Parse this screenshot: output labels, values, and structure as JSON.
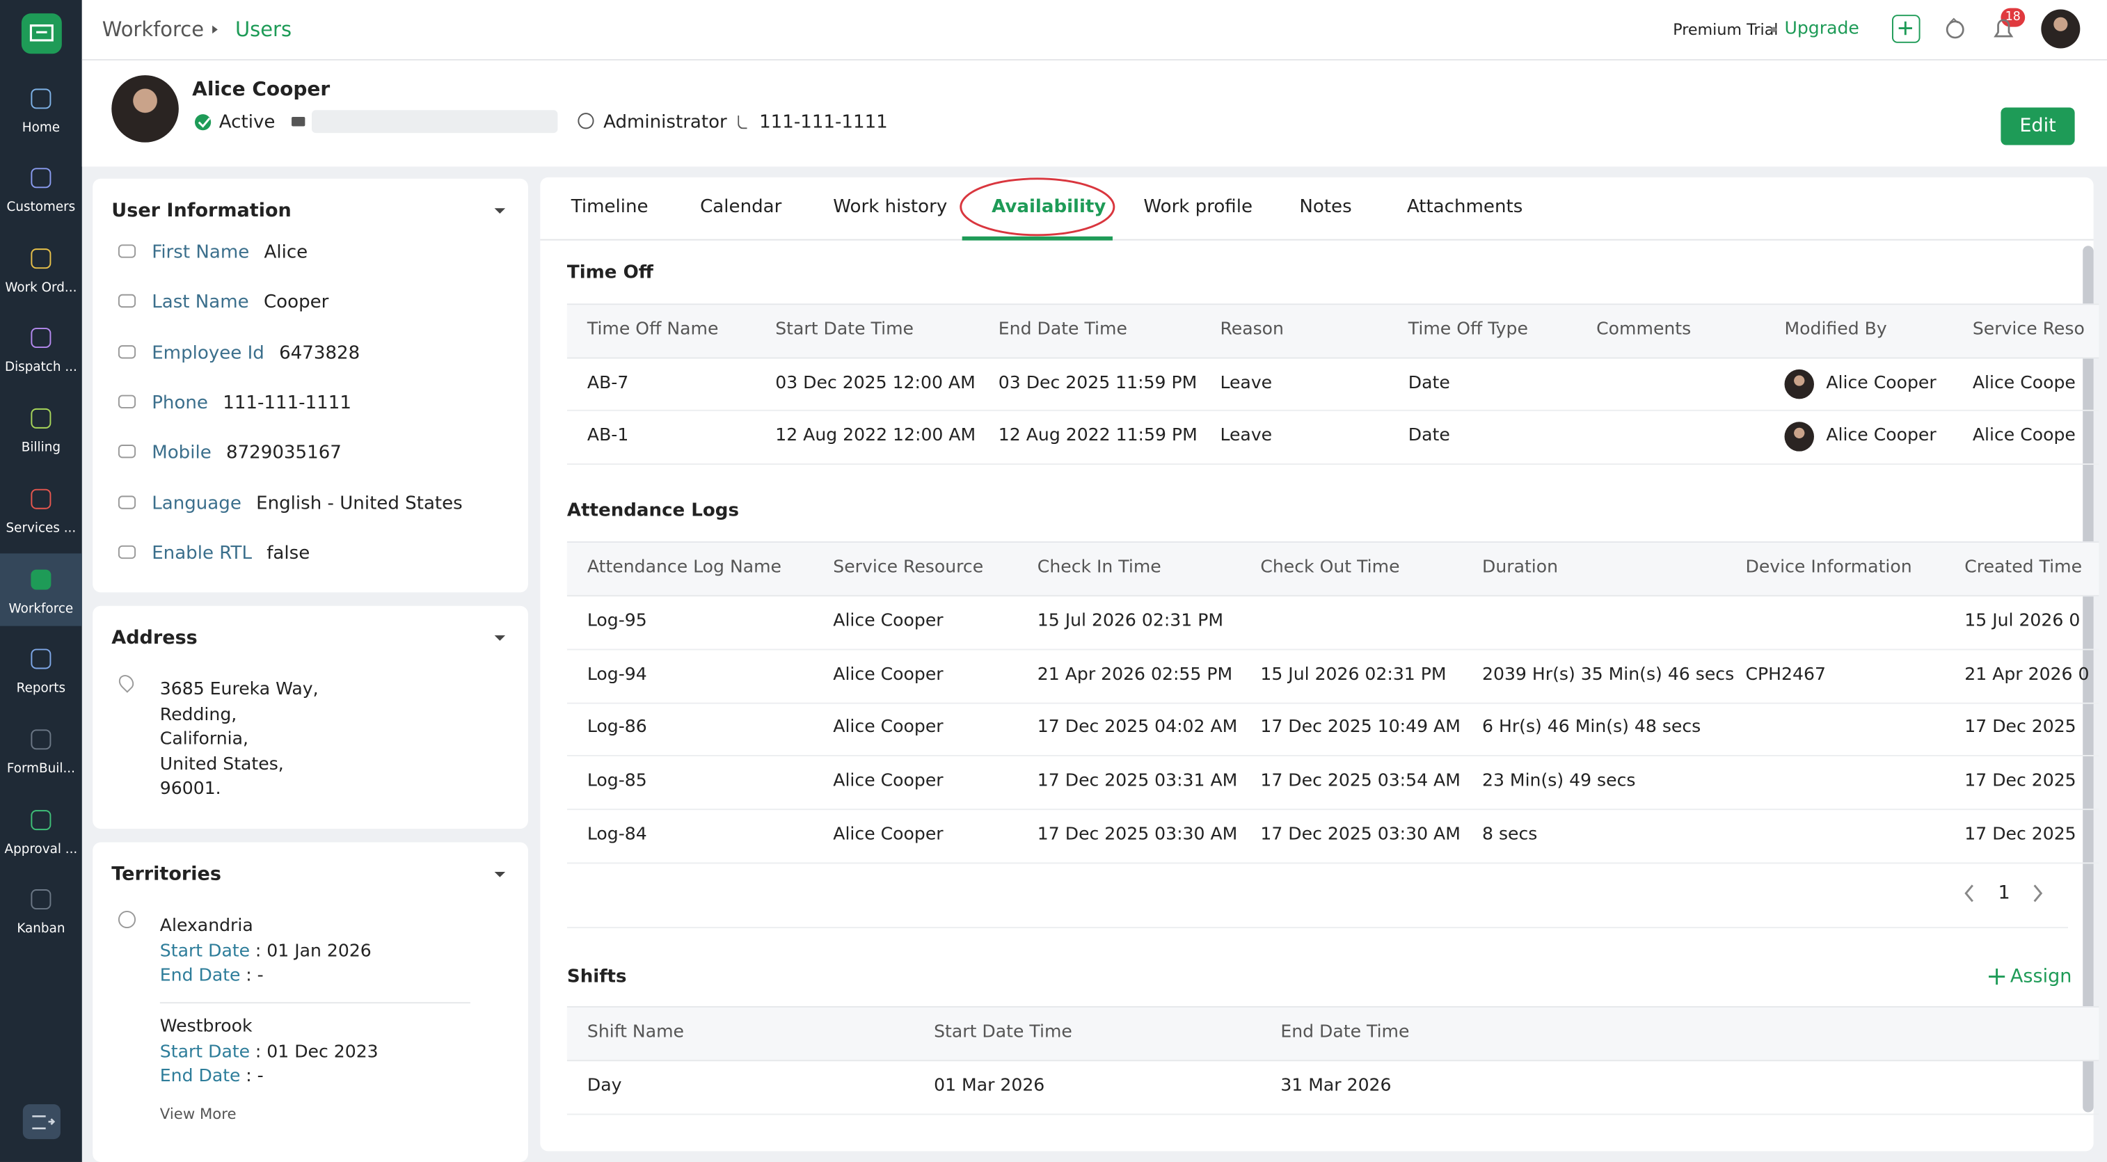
{
  "sidebar": {
    "items": [
      "Home",
      "Customers",
      "Work Ord...",
      "Dispatch ...",
      "Billing",
      "Services ...",
      "Workforce",
      "Reports",
      "FormBuil...",
      "Approval ...",
      "Kanban"
    ]
  },
  "header": {
    "breadcrumb": [
      "Workforce",
      "Users"
    ],
    "plan": "Premium Trial",
    "upgrade": "Upgrade",
    "notifications": "18"
  },
  "profile": {
    "name": "Alice Cooper",
    "status": "Active",
    "role": "Administrator",
    "phone": "111-111-1111",
    "edit": "Edit"
  },
  "user_information": {
    "title": "User Information",
    "fields": [
      {
        "label": "First Name",
        "value": "Alice"
      },
      {
        "label": "Last Name",
        "value": "Cooper"
      },
      {
        "label": "Employee Id",
        "value": "6473828"
      },
      {
        "label": "Phone",
        "value": "111-111-1111"
      },
      {
        "label": "Mobile",
        "value": "8729035167"
      },
      {
        "label": "Language",
        "value": "English - United States"
      },
      {
        "label": "Enable RTL",
        "value": "false"
      }
    ]
  },
  "address": {
    "title": "Address",
    "lines": [
      "3685 Eureka Way,",
      "Redding,",
      "California,",
      "United States,",
      "96001."
    ]
  },
  "territories": {
    "title": "Territories",
    "items": [
      {
        "name": "Alexandria",
        "start_label": "Start Date",
        "start": ": 01 Jan 2026",
        "end_label": "End Date",
        "end": ": -"
      },
      {
        "name": "Westbrook",
        "start_label": "Start Date",
        "start": ": 01 Dec 2023",
        "end_label": "End Date",
        "end": ": -"
      }
    ],
    "view_more": "View More"
  },
  "tabs": [
    "Timeline",
    "Calendar",
    "Work history",
    "Availability",
    "Work profile",
    "Notes",
    "Attachments"
  ],
  "time_off": {
    "title": "Time Off",
    "columns": [
      "Time Off Name",
      "Start Date Time",
      "End Date Time",
      "Reason",
      "Time Off Type",
      "Comments",
      "Modified By",
      "Service Reso"
    ],
    "rows": [
      [
        "AB-7",
        "03 Dec 2025 12:00 AM",
        "03 Dec 2025 11:59 PM",
        "Leave",
        "Date",
        null,
        "Alice Cooper",
        "Alice Coope"
      ],
      [
        "AB-1",
        "12 Aug 2022 12:00 AM",
        "12 Aug 2022 11:59 PM",
        "Leave",
        "Date",
        null,
        "Alice Cooper",
        "Alice Coope"
      ]
    ]
  },
  "attendance_logs": {
    "title": "Attendance Logs",
    "columns": [
      "Attendance Log Name",
      "Service Resource",
      "Check In Time",
      "Check Out Time",
      "Duration",
      "Device Information",
      "Created Time"
    ],
    "rows": [
      [
        "Log-95",
        "Alice Cooper",
        "15 Jul 2026 02:31 PM",
        null,
        null,
        null,
        "15 Jul 2026 0"
      ],
      [
        "Log-94",
        "Alice Cooper",
        "21 Apr 2026 02:55 PM",
        "15 Jul 2026 02:31 PM",
        "2039 Hr(s) 35 Min(s) 46 secs",
        "CPH2467",
        "21 Apr 2026 0"
      ],
      [
        "Log-86",
        "Alice Cooper",
        "17 Dec 2025 04:02 AM",
        "17 Dec 2025 10:49 AM",
        "6 Hr(s) 46 Min(s) 48 secs",
        null,
        "17 Dec 2025"
      ],
      [
        "Log-85",
        "Alice Cooper",
        "17 Dec 2025 03:31 AM",
        "17 Dec 2025 03:54 AM",
        "23 Min(s) 49 secs",
        null,
        "17 Dec 2025"
      ],
      [
        "Log-84",
        "Alice Cooper",
        "17 Dec 2025 03:30 AM",
        "17 Dec 2025 03:30 AM",
        "8 secs",
        null,
        "17 Dec 2025"
      ]
    ],
    "page": "1"
  },
  "shifts": {
    "title": "Shifts",
    "assign": "Assign",
    "columns": [
      "Shift Name",
      "Start Date Time",
      "End Date Time"
    ],
    "rows": [
      [
        "Day",
        "01 Mar 2026",
        "31 Mar 2026"
      ]
    ]
  }
}
